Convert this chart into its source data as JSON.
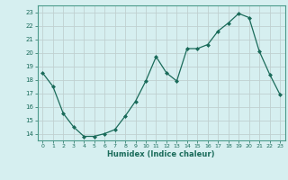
{
  "x": [
    0,
    1,
    2,
    3,
    4,
    5,
    6,
    7,
    8,
    9,
    10,
    11,
    12,
    13,
    14,
    15,
    16,
    17,
    18,
    19,
    20,
    21,
    22,
    23
  ],
  "y": [
    18.5,
    17.5,
    15.5,
    14.5,
    13.8,
    13.8,
    14.0,
    14.3,
    15.3,
    16.4,
    17.9,
    19.7,
    18.5,
    17.9,
    20.3,
    20.3,
    20.6,
    21.6,
    22.2,
    22.9,
    22.6,
    20.1,
    18.4,
    16.9
  ],
  "xlim": [
    -0.5,
    23.5
  ],
  "ylim": [
    13.5,
    23.5
  ],
  "yticks": [
    14,
    15,
    16,
    17,
    18,
    19,
    20,
    21,
    22,
    23
  ],
  "xticks": [
    0,
    1,
    2,
    3,
    4,
    5,
    6,
    7,
    8,
    9,
    10,
    11,
    12,
    13,
    14,
    15,
    16,
    17,
    18,
    19,
    20,
    21,
    22,
    23
  ],
  "xlabel": "Humidex (Indice chaleur)",
  "line_color": "#1a6b5a",
  "marker": "D",
  "marker_size": 2.0,
  "bg_color": "#d6eff0",
  "grid_color": "#c0d0d0",
  "tick_color": "#1a6b5a",
  "label_color": "#1a6b5a",
  "spine_color": "#4a9a8a"
}
